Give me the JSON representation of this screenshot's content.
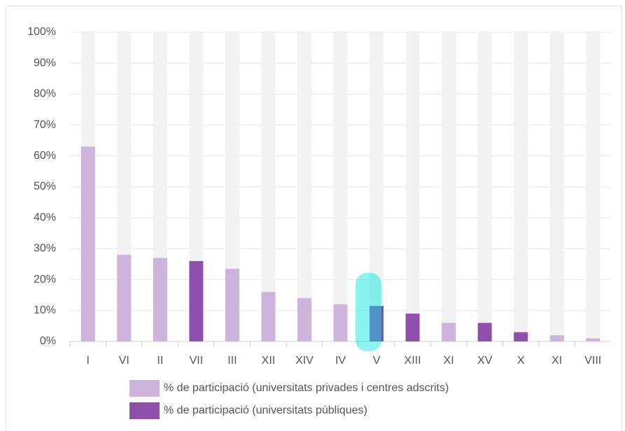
{
  "chart_data": {
    "type": "bar",
    "categories": [
      "I",
      "VI",
      "II",
      "VII",
      "III",
      "XII",
      "XIV",
      "IV",
      "V",
      "XIII",
      "XI",
      "XV",
      "X",
      "XI",
      "VIII"
    ],
    "series": [
      {
        "name": "% de participació (universitats privades i centres adscrits)",
        "color": "#cdb4dd",
        "values": [
          63,
          28,
          27,
          null,
          23.5,
          16,
          14,
          12,
          null,
          null,
          6,
          null,
          null,
          2,
          1
        ]
      },
      {
        "name": "% de participació (universitats públiques)",
        "color": "#8e4fad",
        "values": [
          null,
          null,
          null,
          26,
          null,
          null,
          null,
          null,
          11.5,
          9,
          null,
          6,
          3,
          null,
          null
        ]
      }
    ],
    "ylim": [
      0,
      100
    ],
    "yticks": [
      {
        "value": 0,
        "label": "0%"
      },
      {
        "value": 10,
        "label": "10%"
      },
      {
        "value": 20,
        "label": "20%"
      },
      {
        "value": 30,
        "label": "30%"
      },
      {
        "value": 40,
        "label": "40%"
      },
      {
        "value": 50,
        "label": "50%"
      },
      {
        "value": 60,
        "label": "60%"
      },
      {
        "value": 70,
        "label": "70%"
      },
      {
        "value": 80,
        "label": "80%"
      },
      {
        "value": 90,
        "label": "90%"
      },
      {
        "value": 100,
        "label": "100%"
      }
    ],
    "grid": true
  }
}
